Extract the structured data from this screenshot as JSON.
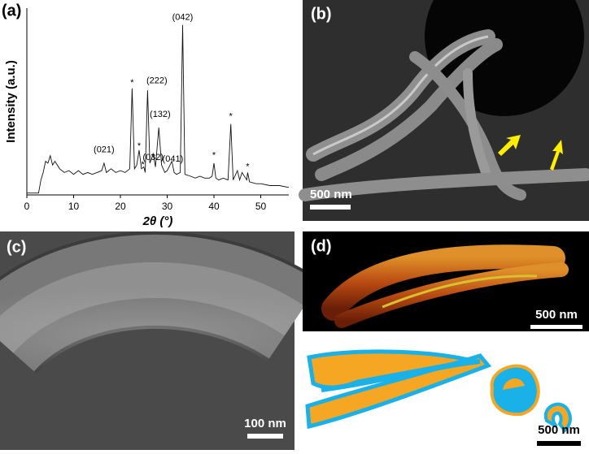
{
  "chart_data": {
    "type": "line",
    "ylabel": "Intensity (a.u.)",
    "xlabel": "2θ (°)",
    "xlim": [
      0,
      56
    ],
    "ylim": [
      0,
      100
    ],
    "xticks": [
      0,
      10,
      20,
      30,
      40,
      50
    ],
    "x": [
      0,
      2.5,
      3,
      3.5,
      4,
      4.5,
      5,
      5.5,
      6,
      7,
      8,
      9,
      10,
      11,
      12,
      13,
      14,
      15,
      16,
      16.5,
      17,
      18,
      19,
      20,
      21,
      22,
      22.5,
      23,
      23.5,
      24,
      24.5,
      25,
      25.3,
      25.8,
      26.3,
      27,
      27.5,
      28.2,
      28.8,
      29.5,
      30,
      31,
      31.5,
      32,
      32.8,
      33.3,
      33.8,
      35,
      36,
      37,
      38,
      39,
      39.6,
      40,
      40.4,
      41,
      42,
      43,
      43.6,
      44.1,
      45,
      45.5,
      46,
      47,
      47.2,
      47.6,
      49,
      50,
      52,
      54,
      56
    ],
    "series": [
      {
        "color": "#111111",
        "values": [
          1,
          1,
          8,
          12,
          18,
          17,
          21,
          16,
          18,
          14,
          12,
          13,
          11,
          13,
          11,
          12,
          11,
          12,
          13,
          17,
          12,
          14,
          12,
          13,
          12,
          14,
          57,
          14,
          16,
          24,
          14,
          15,
          12,
          56,
          17,
          22,
          15,
          36,
          16,
          12,
          13,
          18,
          12,
          11,
          12,
          91,
          11,
          10,
          9,
          10,
          9,
          9,
          10,
          17,
          9,
          8,
          9,
          8,
          38,
          8,
          13,
          8,
          12,
          8,
          12,
          7,
          6,
          6,
          5,
          5,
          4
        ]
      }
    ],
    "annotations": [
      {
        "text": "(021)",
        "x": 16.5,
        "y": 24
      },
      {
        "text": "*",
        "x": 22.5,
        "y": 60
      },
      {
        "text": "(222)",
        "x": 27.8,
        "y": 61
      },
      {
        "text": "*",
        "x": 24,
        "y": 26
      },
      {
        "text": "*",
        "x": 24.8,
        "y": 16
      },
      {
        "text": "(032)",
        "x": 27,
        "y": 20
      },
      {
        "text": "(132)",
        "x": 28.5,
        "y": 43
      },
      {
        "text": "(041)",
        "x": 31.2,
        "y": 19
      },
      {
        "text": "(042)",
        "x": 33.3,
        "y": 95
      },
      {
        "text": "*",
        "x": 40,
        "y": 21
      },
      {
        "text": "*",
        "x": 43.6,
        "y": 42
      },
      {
        "text": "*",
        "x": 47.2,
        "y": 15
      }
    ]
  },
  "panels": [
    {
      "label": "(a)"
    },
    {
      "label": "(b)",
      "scale_bar": "500 nm"
    },
    {
      "label": "(c)",
      "scale_bar": "100 nm"
    },
    {
      "label": "(d)",
      "scale_bars": [
        "500 nm",
        "500 nm"
      ]
    }
  ]
}
